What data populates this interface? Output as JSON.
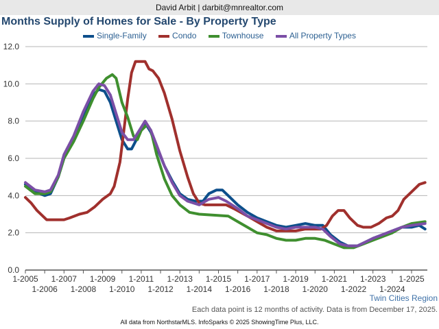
{
  "header": {
    "contact": "David Arbit | darbit@mnrealtor.com"
  },
  "footer": {
    "region": "Twin Cities Region",
    "note": "Each data point is 12 months of activity. Data is from December 17, 2025.",
    "credit": "All data from NorthstarMLS. InfoSparks © 2025 ShowingTime Plus, LLC."
  },
  "chart_data": {
    "type": "line",
    "title": "Months Supply of Homes for Sale - By Property Type",
    "xlabel": "",
    "ylabel": "",
    "xlim": [
      2005,
      2025.75
    ],
    "ylim": [
      0,
      12
    ],
    "yticks": [
      "0.0",
      "2.0",
      "4.0",
      "6.0",
      "8.0",
      "10.0",
      "12.0"
    ],
    "xticks": [
      "1-2005",
      "1-2006",
      "1-2007",
      "1-2008",
      "1-2009",
      "1-2010",
      "1-2011",
      "1-2012",
      "1-2013",
      "1-2014",
      "1-2015",
      "1-2016",
      "1-2017",
      "1-2018",
      "1-2019",
      "1-2020",
      "1-2021",
      "1-2022",
      "1-2023",
      "1-2024",
      "1-2025"
    ],
    "grid": true,
    "legend": "top-center",
    "series": [
      {
        "name": "Single-Family",
        "color": "#0d4f8b",
        "points": [
          [
            2005,
            4.6
          ],
          [
            2005.5,
            4.2
          ],
          [
            2006,
            4.0
          ],
          [
            2006.3,
            4.1
          ],
          [
            2006.7,
            5.0
          ],
          [
            2007,
            6.0
          ],
          [
            2007.5,
            7.0
          ],
          [
            2008,
            8.3
          ],
          [
            2008.5,
            9.4
          ],
          [
            2008.8,
            9.7
          ],
          [
            2009.1,
            9.6
          ],
          [
            2009.4,
            9.0
          ],
          [
            2009.7,
            8.0
          ],
          [
            2010,
            7.0
          ],
          [
            2010.3,
            6.5
          ],
          [
            2010.5,
            6.5
          ],
          [
            2010.8,
            7.1
          ],
          [
            2011,
            7.6
          ],
          [
            2011.2,
            7.9
          ],
          [
            2011.5,
            7.4
          ],
          [
            2011.8,
            6.6
          ],
          [
            2012.2,
            5.6
          ],
          [
            2012.6,
            4.8
          ],
          [
            2013,
            4.1
          ],
          [
            2013.4,
            3.8
          ],
          [
            2013.8,
            3.7
          ],
          [
            2014.2,
            3.7
          ],
          [
            2014.5,
            4.1
          ],
          [
            2014.9,
            4.3
          ],
          [
            2015.2,
            4.3
          ],
          [
            2015.5,
            4.0
          ],
          [
            2016,
            3.5
          ],
          [
            2016.5,
            3.1
          ],
          [
            2017,
            2.8
          ],
          [
            2017.5,
            2.6
          ],
          [
            2018,
            2.4
          ],
          [
            2018.5,
            2.3
          ],
          [
            2019,
            2.4
          ],
          [
            2019.5,
            2.5
          ],
          [
            2020,
            2.4
          ],
          [
            2020.4,
            2.4
          ],
          [
            2020.8,
            1.9
          ],
          [
            2021.3,
            1.5
          ],
          [
            2021.7,
            1.3
          ],
          [
            2022.2,
            1.3
          ],
          [
            2022.6,
            1.5
          ],
          [
            2023,
            1.7
          ],
          [
            2023.5,
            1.9
          ],
          [
            2024,
            2.1
          ],
          [
            2024.5,
            2.3
          ],
          [
            2025,
            2.3
          ],
          [
            2025.4,
            2.4
          ],
          [
            2025.7,
            2.2
          ]
        ]
      },
      {
        "name": "Condo",
        "color": "#a0302d",
        "points": [
          [
            2005,
            3.9
          ],
          [
            2005.3,
            3.6
          ],
          [
            2005.6,
            3.2
          ],
          [
            2006,
            2.8
          ],
          [
            2006.1,
            2.7
          ],
          [
            2007,
            2.7
          ],
          [
            2007.3,
            2.8
          ],
          [
            2007.8,
            3.0
          ],
          [
            2008.2,
            3.1
          ],
          [
            2008.6,
            3.4
          ],
          [
            2009,
            3.8
          ],
          [
            2009.4,
            4.1
          ],
          [
            2009.6,
            4.5
          ],
          [
            2009.9,
            5.8
          ],
          [
            2010.1,
            7.5
          ],
          [
            2010.3,
            9.2
          ],
          [
            2010.5,
            10.6
          ],
          [
            2010.7,
            11.2
          ],
          [
            2011.2,
            11.2
          ],
          [
            2011.4,
            10.8
          ],
          [
            2011.6,
            10.7
          ],
          [
            2011.9,
            10.3
          ],
          [
            2012.2,
            9.5
          ],
          [
            2012.6,
            8.1
          ],
          [
            2013,
            6.4
          ],
          [
            2013.4,
            5.0
          ],
          [
            2013.7,
            4.1
          ],
          [
            2014,
            3.6
          ],
          [
            2014.3,
            3.5
          ],
          [
            2015.4,
            3.5
          ],
          [
            2015.8,
            3.3
          ],
          [
            2016.5,
            2.9
          ],
          [
            2017,
            2.6
          ],
          [
            2017.5,
            2.3
          ],
          [
            2018,
            2.1
          ],
          [
            2019,
            2.1
          ],
          [
            2019.5,
            2.2
          ],
          [
            2020.3,
            2.2
          ],
          [
            2020.6,
            2.4
          ],
          [
            2020.9,
            2.9
          ],
          [
            2021.2,
            3.2
          ],
          [
            2021.5,
            3.2
          ],
          [
            2021.8,
            2.8
          ],
          [
            2022.2,
            2.4
          ],
          [
            2022.5,
            2.3
          ],
          [
            2022.9,
            2.3
          ],
          [
            2023.3,
            2.5
          ],
          [
            2023.7,
            2.8
          ],
          [
            2024,
            2.9
          ],
          [
            2024.3,
            3.2
          ],
          [
            2024.6,
            3.8
          ],
          [
            2025,
            4.2
          ],
          [
            2025.4,
            4.6
          ],
          [
            2025.7,
            4.7
          ]
        ]
      },
      {
        "name": "Townhouse",
        "color": "#3f8f2f",
        "points": [
          [
            2005,
            4.5
          ],
          [
            2005.5,
            4.1
          ],
          [
            2006,
            4.1
          ],
          [
            2006.3,
            4.2
          ],
          [
            2006.7,
            5.0
          ],
          [
            2007,
            6.0
          ],
          [
            2007.5,
            6.9
          ],
          [
            2008,
            8.0
          ],
          [
            2008.5,
            9.2
          ],
          [
            2008.8,
            9.8
          ],
          [
            2009.2,
            10.3
          ],
          [
            2009.5,
            10.5
          ],
          [
            2009.7,
            10.3
          ],
          [
            2010,
            9.0
          ],
          [
            2010.3,
            8.2
          ],
          [
            2010.6,
            7.2
          ],
          [
            2010.8,
            7.0
          ],
          [
            2011,
            7.5
          ],
          [
            2011.3,
            7.8
          ],
          [
            2011.5,
            7.5
          ],
          [
            2011.8,
            6.2
          ],
          [
            2012.2,
            4.9
          ],
          [
            2012.6,
            4.0
          ],
          [
            2013,
            3.5
          ],
          [
            2013.5,
            3.1
          ],
          [
            2014,
            3.0
          ],
          [
            2015.5,
            2.9
          ],
          [
            2016,
            2.6
          ],
          [
            2016.5,
            2.3
          ],
          [
            2017,
            2.0
          ],
          [
            2017.5,
            1.9
          ],
          [
            2018,
            1.7
          ],
          [
            2018.5,
            1.6
          ],
          [
            2019,
            1.6
          ],
          [
            2019.5,
            1.7
          ],
          [
            2020,
            1.7
          ],
          [
            2020.5,
            1.6
          ],
          [
            2021,
            1.4
          ],
          [
            2021.5,
            1.2
          ],
          [
            2022,
            1.2
          ],
          [
            2022.5,
            1.4
          ],
          [
            2023,
            1.6
          ],
          [
            2023.5,
            1.8
          ],
          [
            2024,
            2.0
          ],
          [
            2024.5,
            2.3
          ],
          [
            2025,
            2.5
          ],
          [
            2025.7,
            2.6
          ]
        ]
      },
      {
        "name": "All Property Types",
        "color": "#7b4fa6",
        "points": [
          [
            2005,
            4.7
          ],
          [
            2005.5,
            4.3
          ],
          [
            2006,
            4.2
          ],
          [
            2006.3,
            4.3
          ],
          [
            2006.7,
            5.1
          ],
          [
            2007,
            6.2
          ],
          [
            2007.5,
            7.2
          ],
          [
            2008,
            8.5
          ],
          [
            2008.5,
            9.6
          ],
          [
            2008.8,
            10.0
          ],
          [
            2009.1,
            9.9
          ],
          [
            2009.4,
            9.4
          ],
          [
            2009.7,
            8.4
          ],
          [
            2010,
            7.4
          ],
          [
            2010.3,
            7.0
          ],
          [
            2010.6,
            7.0
          ],
          [
            2010.9,
            7.5
          ],
          [
            2011.2,
            8.0
          ],
          [
            2011.5,
            7.5
          ],
          [
            2011.8,
            6.7
          ],
          [
            2012.2,
            5.6
          ],
          [
            2012.6,
            4.7
          ],
          [
            2013,
            4.0
          ],
          [
            2013.4,
            3.7
          ],
          [
            2014,
            3.5
          ],
          [
            2014.5,
            3.8
          ],
          [
            2015,
            3.9
          ],
          [
            2015.4,
            3.7
          ],
          [
            2016,
            3.3
          ],
          [
            2016.5,
            2.9
          ],
          [
            2017,
            2.7
          ],
          [
            2017.5,
            2.5
          ],
          [
            2018,
            2.3
          ],
          [
            2018.5,
            2.2
          ],
          [
            2019,
            2.3
          ],
          [
            2019.5,
            2.3
          ],
          [
            2020,
            2.3
          ],
          [
            2020.4,
            2.2
          ],
          [
            2020.8,
            1.8
          ],
          [
            2021.3,
            1.4
          ],
          [
            2021.7,
            1.3
          ],
          [
            2022.2,
            1.3
          ],
          [
            2022.6,
            1.5
          ],
          [
            2023,
            1.7
          ],
          [
            2023.5,
            1.9
          ],
          [
            2024,
            2.1
          ],
          [
            2024.5,
            2.3
          ],
          [
            2025,
            2.4
          ],
          [
            2025.7,
            2.5
          ]
        ]
      }
    ]
  }
}
